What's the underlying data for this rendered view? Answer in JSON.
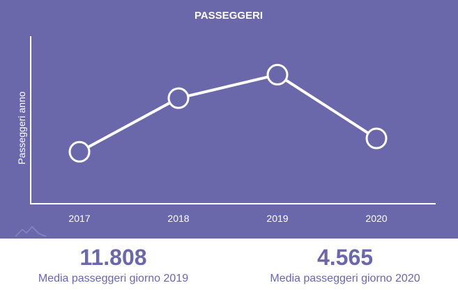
{
  "chart_data": {
    "type": "line",
    "title": "PASSEGGERI",
    "xlabel": "",
    "ylabel": "Passeggeri anno",
    "categories": [
      "2017",
      "2018",
      "2019",
      "2020"
    ],
    "series": [
      {
        "values": [
          3.1,
          6.3,
          7.7,
          3.9
        ]
      }
    ],
    "ylim": [
      0,
      10
    ],
    "grid": false,
    "line_color": "#ffffff",
    "background_color": "#6a67ab"
  },
  "stats": [
    {
      "value": "11.808",
      "label": "Media passeggeri giorno 2019"
    },
    {
      "value": "4.565",
      "label": "Media passeggeri giorno 2020"
    }
  ],
  "colors": {
    "accent": "#6a67ab"
  }
}
